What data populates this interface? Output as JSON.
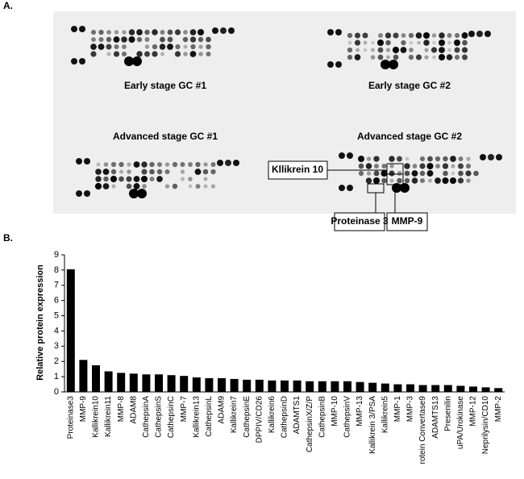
{
  "panel_a": {
    "label": "A.",
    "blots": [
      "Early stage GC #1",
      "Early stage GC #2",
      "Advanced stage GC #1",
      "Advanced stage GC #2"
    ],
    "callouts": [
      "Kllikrein 10",
      "Proteinase 3",
      "MMP-9"
    ]
  },
  "chart_data": {
    "type": "bar",
    "panel_label": "B.",
    "y_label": "Relative protein expression",
    "categories": [
      "Proteinase3",
      "MMP-9",
      "Kallikrein10",
      "Kallikrein11",
      "MMP-8",
      "ADAM8",
      "CathepsinA",
      "CathepsinS",
      "CathepsinC",
      "MMP-7",
      "Kallikrein13",
      "CathepsinL",
      "ADAM9",
      "Kallikrein7",
      "CathepsinE",
      "DPPIV/CD26",
      "Kallikrein6",
      "CathepsinD",
      "ADAMTS1",
      "CathepsinX/Z/P",
      "CathepsinB",
      "MMP-10",
      "CathepsinV",
      "MMP-13",
      "Kallikrein 3/PSA",
      "Kallikrein5",
      "MMP-1",
      "MMP-3",
      "rotein Convertase9",
      "ADAMTS13",
      "Presenilin",
      "uPA/Urokinase",
      "MMP-12",
      "Neprilysin/CD10",
      "MMP-2"
    ],
    "values": [
      8.05,
      2.1,
      1.75,
      1.35,
      1.25,
      1.2,
      1.15,
      1.15,
      1.1,
      1.05,
      0.95,
      0.9,
      0.9,
      0.85,
      0.8,
      0.8,
      0.75,
      0.75,
      0.75,
      0.7,
      0.7,
      0.7,
      0.7,
      0.65,
      0.6,
      0.55,
      0.5,
      0.5,
      0.45,
      0.45,
      0.45,
      0.4,
      0.35,
      0.3,
      0.25
    ],
    "color": "#000000",
    "ylim": [
      0,
      9
    ],
    "yticks": [
      0,
      1,
      2,
      3,
      4,
      5,
      6,
      7,
      8,
      9
    ]
  }
}
